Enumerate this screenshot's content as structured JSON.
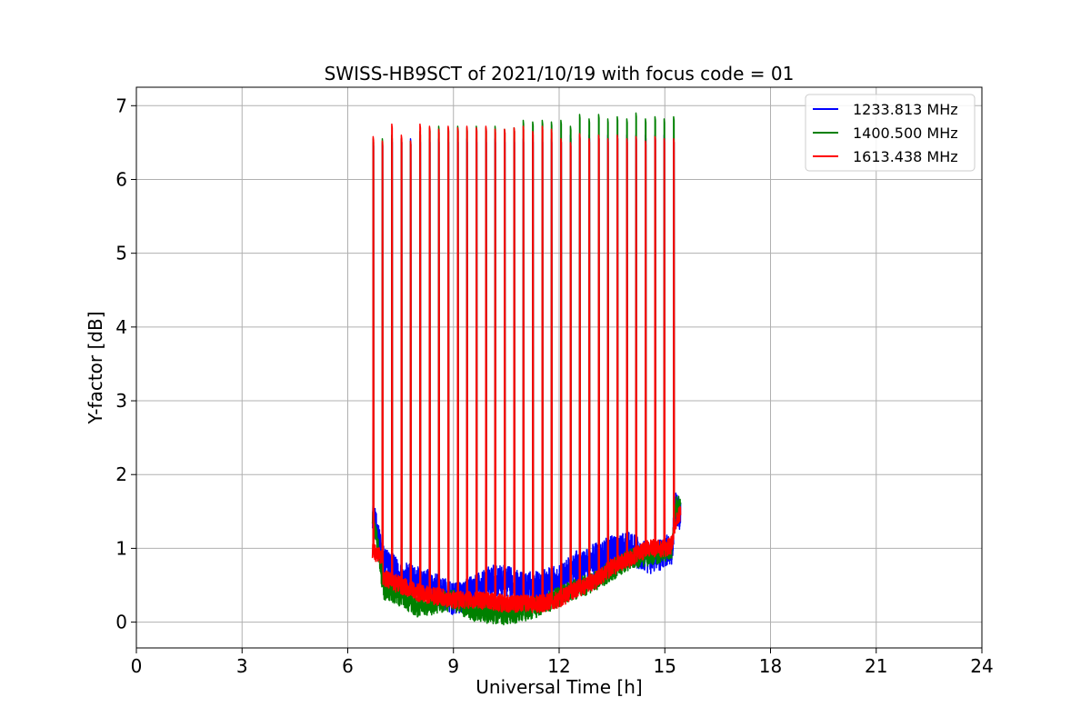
{
  "chart_data": {
    "type": "line",
    "title": "SWISS-HB9SCT of 2021/10/19 with focus code = 01",
    "xlabel": "Universal Time [h]",
    "ylabel": "Y-factor [dB]",
    "xlim": [
      0,
      24
    ],
    "ylim": [
      -0.35,
      7.25
    ],
    "xticks": [
      0,
      3,
      6,
      9,
      12,
      15,
      18,
      21,
      24
    ],
    "yticks": [
      0,
      1,
      2,
      3,
      4,
      5,
      6,
      7
    ],
    "grid": true,
    "legend_position": "top-right",
    "calibration_spikes": {
      "times": [
        6.72,
        6.98,
        7.25,
        7.52,
        7.78,
        8.05,
        8.32,
        8.58,
        8.85,
        9.12,
        9.38,
        9.65,
        9.92,
        10.18,
        10.45,
        10.72,
        10.98,
        11.25,
        11.52,
        11.78,
        12.05,
        12.32,
        12.58,
        12.85,
        13.12,
        13.38,
        13.65,
        13.92,
        14.18,
        14.45,
        14.72,
        14.98,
        15.25
      ]
    },
    "series": [
      {
        "name": "1233.813 MHz",
        "color": "#0000ff",
        "baseline": [
          [
            6.7,
            1.5
          ],
          [
            6.9,
            1.05
          ],
          [
            7.0,
            0.85
          ],
          [
            7.5,
            0.6
          ],
          [
            8.0,
            0.55
          ],
          [
            8.5,
            0.45
          ],
          [
            9.0,
            0.3
          ],
          [
            9.5,
            0.4
          ],
          [
            10.0,
            0.55
          ],
          [
            10.5,
            0.55
          ],
          [
            11.0,
            0.45
          ],
          [
            11.5,
            0.5
          ],
          [
            12.0,
            0.55
          ],
          [
            12.5,
            0.75
          ],
          [
            13.0,
            0.85
          ],
          [
            13.5,
            0.95
          ],
          [
            14.0,
            1.0
          ],
          [
            14.5,
            0.85
          ],
          [
            15.0,
            0.95
          ],
          [
            15.2,
            1.0
          ],
          [
            15.3,
            1.55
          ],
          [
            15.45,
            1.45
          ]
        ],
        "noise": 0.22,
        "spike_peaks": [
          6.5,
          6.5,
          6.55,
          6.55,
          6.55,
          6.55,
          6.55,
          6.55,
          6.55,
          6.55,
          6.55,
          6.55,
          6.55,
          6.55,
          6.55,
          6.55,
          6.55,
          6.55,
          6.55,
          6.55,
          6.55,
          6.6,
          6.6,
          6.6,
          6.6,
          6.6,
          6.6,
          6.6,
          6.6,
          6.6,
          6.6,
          6.6,
          6.55
        ]
      },
      {
        "name": "1400.500 MHz",
        "color": "#008000",
        "baseline": [
          [
            6.7,
            1.45
          ],
          [
            6.9,
            0.9
          ],
          [
            7.0,
            0.45
          ],
          [
            7.5,
            0.35
          ],
          [
            8.0,
            0.2
          ],
          [
            8.5,
            0.25
          ],
          [
            9.0,
            0.3
          ],
          [
            9.5,
            0.15
          ],
          [
            10.0,
            0.12
          ],
          [
            10.5,
            0.1
          ],
          [
            11.0,
            0.15
          ],
          [
            11.5,
            0.22
          ],
          [
            12.0,
            0.35
          ],
          [
            12.5,
            0.45
          ],
          [
            13.0,
            0.55
          ],
          [
            13.5,
            0.7
          ],
          [
            14.0,
            0.85
          ],
          [
            14.5,
            0.9
          ],
          [
            15.0,
            0.95
          ],
          [
            15.2,
            1.0
          ],
          [
            15.3,
            1.55
          ],
          [
            15.45,
            1.6
          ]
        ],
        "noise": 0.14,
        "spike_peaks": [
          6.55,
          6.55,
          6.6,
          6.55,
          6.52,
          6.65,
          6.7,
          6.72,
          6.7,
          6.72,
          6.7,
          6.72,
          6.7,
          6.72,
          6.68,
          6.7,
          6.8,
          6.78,
          6.8,
          6.78,
          6.8,
          6.72,
          6.88,
          6.82,
          6.88,
          6.82,
          6.85,
          6.82,
          6.9,
          6.82,
          6.85,
          6.82,
          6.85
        ]
      },
      {
        "name": "1613.438 MHz",
        "color": "#ff0000",
        "baseline": [
          [
            6.7,
            0.95
          ],
          [
            6.95,
            0.9
          ],
          [
            7.0,
            0.6
          ],
          [
            7.5,
            0.5
          ],
          [
            8.0,
            0.4
          ],
          [
            8.5,
            0.35
          ],
          [
            9.0,
            0.3
          ],
          [
            9.5,
            0.3
          ],
          [
            10.0,
            0.28
          ],
          [
            10.5,
            0.25
          ],
          [
            11.0,
            0.25
          ],
          [
            11.5,
            0.25
          ],
          [
            12.0,
            0.3
          ],
          [
            12.5,
            0.45
          ],
          [
            13.0,
            0.55
          ],
          [
            13.5,
            0.75
          ],
          [
            14.0,
            0.85
          ],
          [
            14.5,
            1.0
          ],
          [
            15.0,
            1.0
          ],
          [
            15.2,
            1.05
          ],
          [
            15.3,
            1.35
          ],
          [
            15.45,
            1.5
          ]
        ],
        "noise": 0.12,
        "spike_peaks": [
          6.58,
          6.52,
          6.75,
          6.6,
          6.52,
          6.75,
          6.72,
          6.68,
          6.72,
          6.7,
          6.72,
          6.7,
          6.72,
          6.68,
          6.68,
          6.7,
          6.72,
          6.65,
          6.72,
          6.68,
          6.55,
          6.5,
          6.62,
          6.55,
          6.6,
          6.55,
          6.6,
          6.55,
          6.58,
          6.52,
          6.58,
          6.55,
          6.55
        ]
      }
    ]
  }
}
